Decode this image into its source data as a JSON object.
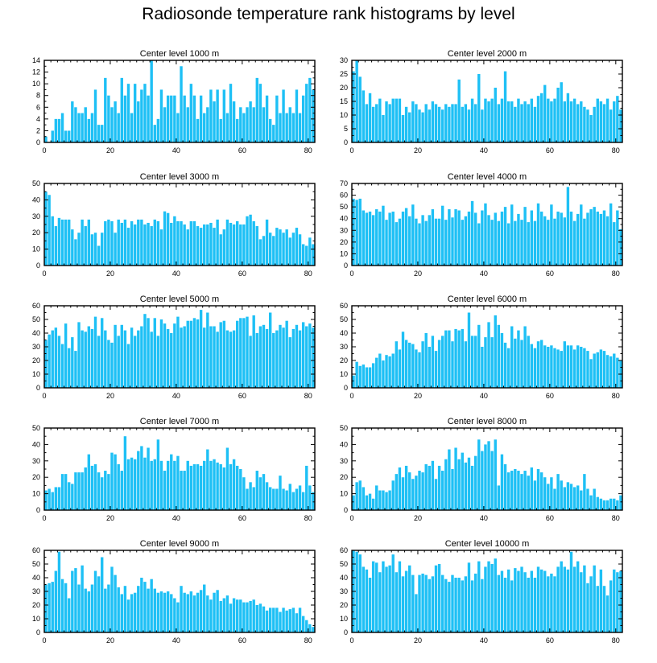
{
  "figure": {
    "title": "Radiosonde temperature rank histograms by level"
  },
  "colors": {
    "bar": "#1ec0f5",
    "axis": "#000000"
  },
  "chart_data": [
    {
      "type": "bar",
      "title": "Center level 1000 m",
      "xlabel": "",
      "ylabel": "",
      "xlim": [
        0,
        82
      ],
      "ylim": [
        0,
        14
      ],
      "xticks": [
        0,
        20,
        40,
        60,
        80
      ],
      "yticks": [
        0,
        2,
        4,
        6,
        8,
        10,
        12,
        14
      ],
      "values": [
        1,
        0,
        2,
        4,
        4,
        5,
        2,
        2,
        7,
        6,
        5,
        5,
        6,
        4,
        5,
        9,
        3,
        3,
        11,
        8,
        6,
        7,
        5,
        11,
        8,
        10,
        5,
        10,
        7,
        9,
        10,
        8,
        14,
        3,
        4,
        9,
        6,
        8,
        8,
        8,
        5,
        13,
        8,
        6,
        10,
        8,
        4,
        8,
        5,
        6,
        9,
        7,
        9,
        4,
        9,
        5,
        10,
        7,
        4,
        6,
        5,
        6,
        7,
        6,
        11,
        10,
        6,
        8,
        4,
        3,
        8,
        5,
        9,
        5,
        6,
        5,
        9,
        5,
        8,
        10,
        11,
        9
      ]
    },
    {
      "type": "bar",
      "title": "Center level 2000 m",
      "xlabel": "",
      "ylabel": "",
      "xlim": [
        0,
        82
      ],
      "ylim": [
        0,
        30
      ],
      "xticks": [
        0,
        20,
        40,
        60,
        80
      ],
      "yticks": [
        0,
        5,
        10,
        15,
        20,
        25,
        30
      ],
      "values": [
        26,
        30,
        24,
        19,
        14,
        18,
        13,
        14,
        16,
        10,
        15,
        14,
        16,
        16,
        16,
        10,
        13,
        11,
        15,
        14,
        12,
        11,
        14,
        12,
        15,
        14,
        13,
        12,
        14,
        13,
        14,
        14,
        23,
        13,
        14,
        12,
        16,
        14,
        25,
        12,
        16,
        15,
        16,
        20,
        14,
        16,
        26,
        15,
        15,
        13,
        16,
        14,
        15,
        14,
        16,
        13,
        17,
        18,
        21,
        16,
        15,
        16,
        20,
        22,
        15,
        18,
        15,
        16,
        14,
        15,
        13,
        12,
        10,
        13,
        16,
        15,
        14,
        16,
        12,
        15,
        17,
        12
      ]
    },
    {
      "type": "bar",
      "title": "Center level 3000 m",
      "xlabel": "",
      "ylabel": "",
      "xlim": [
        0,
        82
      ],
      "ylim": [
        0,
        50
      ],
      "xticks": [
        0,
        20,
        40,
        60,
        80
      ],
      "yticks": [
        0,
        10,
        20,
        30,
        40,
        50
      ],
      "values": [
        45,
        43,
        30,
        24,
        29,
        28,
        28,
        28,
        22,
        16,
        20,
        28,
        24,
        28,
        19,
        20,
        12,
        20,
        27,
        28,
        27,
        20,
        28,
        26,
        28,
        23,
        27,
        25,
        28,
        28,
        25,
        26,
        24,
        28,
        27,
        22,
        33,
        32,
        26,
        30,
        27,
        27,
        25,
        22,
        27,
        27,
        24,
        23,
        25,
        25,
        26,
        23,
        28,
        19,
        22,
        28,
        26,
        25,
        27,
        25,
        25,
        30,
        31,
        27,
        24,
        16,
        18,
        28,
        20,
        18,
        23,
        22,
        20,
        22,
        17,
        20,
        23,
        19,
        13,
        12,
        17,
        13
      ]
    },
    {
      "type": "bar",
      "title": "Center level 4000 m",
      "xlabel": "",
      "ylabel": "",
      "xlim": [
        0,
        82
      ],
      "ylim": [
        0,
        70
      ],
      "xticks": [
        0,
        20,
        40,
        60,
        80
      ],
      "yticks": [
        0,
        10,
        20,
        30,
        40,
        50,
        60,
        70
      ],
      "values": [
        57,
        56,
        57,
        47,
        45,
        46,
        43,
        48,
        46,
        51,
        39,
        45,
        46,
        37,
        40,
        46,
        49,
        42,
        52,
        40,
        36,
        43,
        38,
        43,
        48,
        40,
        40,
        51,
        39,
        48,
        41,
        48,
        47,
        39,
        42,
        46,
        55,
        45,
        36,
        47,
        53,
        43,
        39,
        45,
        38,
        46,
        50,
        36,
        52,
        38,
        44,
        39,
        50,
        37,
        47,
        38,
        53,
        46,
        42,
        39,
        52,
        40,
        46,
        45,
        41,
        67,
        46,
        38,
        44,
        52,
        40,
        45,
        48,
        50,
        46,
        44,
        47,
        42,
        53,
        37,
        47,
        31
      ]
    },
    {
      "type": "bar",
      "title": "Center level 5000 m",
      "xlabel": "",
      "ylabel": "",
      "xlim": [
        0,
        82
      ],
      "ylim": [
        0,
        60
      ],
      "xticks": [
        0,
        20,
        40,
        60,
        80
      ],
      "yticks": [
        0,
        10,
        20,
        30,
        40,
        50,
        60
      ],
      "values": [
        35,
        39,
        42,
        44,
        38,
        32,
        47,
        29,
        37,
        27,
        48,
        42,
        41,
        45,
        43,
        52,
        38,
        51,
        42,
        35,
        33,
        46,
        38,
        46,
        42,
        32,
        44,
        38,
        42,
        45,
        54,
        51,
        41,
        51,
        38,
        50,
        47,
        43,
        40,
        47,
        52,
        44,
        45,
        49,
        49,
        51,
        50,
        57,
        44,
        55,
        45,
        45,
        41,
        48,
        49,
        42,
        41,
        42,
        49,
        51,
        51,
        52,
        38,
        53,
        40,
        45,
        46,
        43,
        55,
        40,
        42,
        46,
        44,
        49,
        37,
        43,
        46,
        42,
        48,
        45,
        47,
        44
      ]
    },
    {
      "type": "bar",
      "title": "Center level 6000 m",
      "xlabel": "",
      "ylabel": "",
      "xlim": [
        0,
        82
      ],
      "ylim": [
        0,
        60
      ],
      "xticks": [
        0,
        20,
        40,
        60,
        80
      ],
      "yticks": [
        0,
        10,
        20,
        30,
        40,
        50,
        60
      ],
      "values": [
        9,
        19,
        16,
        17,
        15,
        15,
        18,
        22,
        25,
        20,
        24,
        23,
        25,
        34,
        28,
        41,
        35,
        33,
        32,
        28,
        26,
        34,
        40,
        30,
        38,
        27,
        35,
        38,
        42,
        42,
        34,
        43,
        42,
        43,
        34,
        55,
        38,
        38,
        46,
        30,
        37,
        48,
        37,
        53,
        46,
        40,
        33,
        29,
        45,
        36,
        42,
        35,
        45,
        38,
        32,
        29,
        34,
        35,
        31,
        30,
        31,
        29,
        28,
        27,
        34,
        31,
        31,
        28,
        31,
        30,
        29,
        27,
        21,
        25,
        26,
        28,
        27,
        24,
        23,
        25,
        22,
        20
      ]
    },
    {
      "type": "bar",
      "title": "Center level 7000 m",
      "xlabel": "",
      "ylabel": "",
      "xlim": [
        0,
        82
      ],
      "ylim": [
        0,
        50
      ],
      "xticks": [
        0,
        20,
        40,
        60,
        80
      ],
      "yticks": [
        0,
        10,
        20,
        30,
        40,
        50
      ],
      "values": [
        12,
        13,
        11,
        14,
        14,
        22,
        22,
        17,
        16,
        23,
        23,
        23,
        26,
        34,
        27,
        28,
        23,
        20,
        24,
        22,
        35,
        34,
        28,
        24,
        45,
        31,
        32,
        31,
        36,
        39,
        32,
        38,
        30,
        31,
        43,
        30,
        24,
        30,
        34,
        30,
        33,
        24,
        24,
        30,
        27,
        28,
        28,
        27,
        30,
        37,
        30,
        31,
        29,
        28,
        26,
        38,
        28,
        31,
        27,
        25,
        20,
        13,
        17,
        14,
        24,
        20,
        22,
        17,
        14,
        13,
        13,
        21,
        13,
        12,
        16,
        11,
        13,
        15,
        11,
        27,
        15,
        11
      ]
    },
    {
      "type": "bar",
      "title": "Center level 8000 m",
      "xlabel": "",
      "ylabel": "",
      "xlim": [
        0,
        82
      ],
      "ylim": [
        0,
        50
      ],
      "xticks": [
        0,
        20,
        40,
        60,
        80
      ],
      "yticks": [
        0,
        10,
        20,
        30,
        40,
        50
      ],
      "values": [
        9,
        17,
        18,
        14,
        9,
        10,
        7,
        15,
        12,
        12,
        11,
        12,
        18,
        22,
        26,
        20,
        27,
        23,
        19,
        21,
        24,
        23,
        28,
        27,
        30,
        19,
        27,
        24,
        31,
        37,
        25,
        38,
        31,
        35,
        29,
        32,
        27,
        33,
        43,
        36,
        40,
        42,
        36,
        43,
        15,
        34,
        28,
        23,
        24,
        25,
        24,
        22,
        24,
        21,
        26,
        18,
        25,
        23,
        20,
        16,
        20,
        13,
        22,
        18,
        14,
        17,
        16,
        14,
        15,
        12,
        22,
        13,
        9,
        13,
        8,
        7,
        6,
        6,
        7,
        7,
        6,
        9
      ]
    },
    {
      "type": "bar",
      "title": "Center level 9000 m",
      "xlabel": "",
      "ylabel": "",
      "xlim": [
        0,
        82
      ],
      "ylim": [
        0,
        60
      ],
      "xticks": [
        0,
        20,
        40,
        60,
        80
      ],
      "yticks": [
        0,
        10,
        20,
        30,
        40,
        50,
        60
      ],
      "values": [
        35,
        36,
        37,
        45,
        59,
        39,
        36,
        25,
        45,
        47,
        35,
        49,
        32,
        30,
        35,
        45,
        41,
        55,
        32,
        35,
        48,
        42,
        33,
        28,
        34,
        24,
        28,
        29,
        34,
        40,
        37,
        32,
        39,
        32,
        29,
        30,
        29,
        30,
        28,
        25,
        22,
        34,
        29,
        28,
        30,
        27,
        29,
        31,
        35,
        27,
        24,
        29,
        31,
        23,
        25,
        27,
        21,
        25,
        24,
        24,
        22,
        22,
        23,
        24,
        20,
        21,
        19,
        16,
        18,
        18,
        18,
        15,
        18,
        16,
        17,
        18,
        14,
        18,
        12,
        9,
        6,
        4
      ]
    },
    {
      "type": "bar",
      "title": "Center level 10000 m",
      "xlabel": "",
      "ylabel": "",
      "xlim": [
        0,
        82
      ],
      "ylim": [
        0,
        60
      ],
      "xticks": [
        0,
        20,
        40,
        60,
        80
      ],
      "yticks": [
        0,
        10,
        20,
        30,
        40,
        50,
        60
      ],
      "values": [
        60,
        59,
        57,
        48,
        46,
        40,
        52,
        51,
        44,
        52,
        48,
        49,
        57,
        44,
        52,
        41,
        45,
        49,
        42,
        28,
        42,
        43,
        42,
        39,
        41,
        49,
        50,
        42,
        39,
        37,
        42,
        40,
        40,
        38,
        41,
        51,
        38,
        43,
        52,
        39,
        48,
        52,
        50,
        54,
        42,
        45,
        40,
        46,
        38,
        47,
        45,
        48,
        44,
        40,
        45,
        40,
        48,
        46,
        45,
        41,
        43,
        41,
        48,
        52,
        48,
        46,
        59,
        48,
        52,
        44,
        49,
        36,
        41,
        49,
        34,
        46,
        34,
        27,
        38,
        46,
        44,
        45
      ]
    }
  ]
}
